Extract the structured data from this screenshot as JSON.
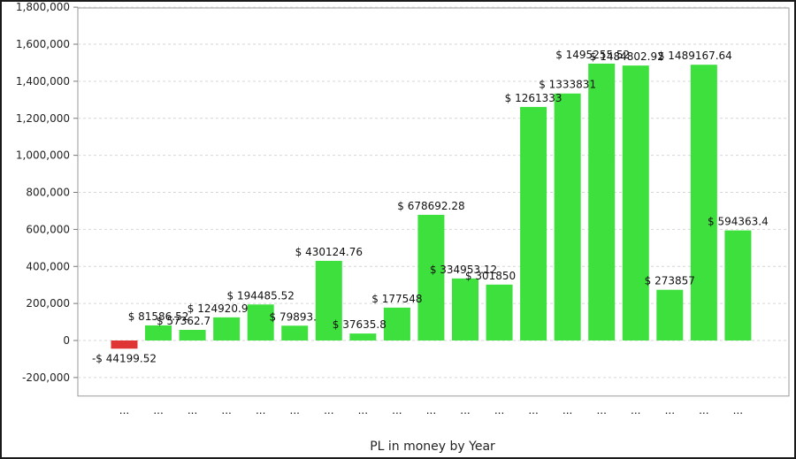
{
  "chart_data": {
    "type": "bar",
    "title": "",
    "xlabel": "PL in money by Year",
    "ylabel": "",
    "ylim": [
      -300000,
      1800000
    ],
    "yticks": [
      -200000,
      0,
      200000,
      400000,
      600000,
      800000,
      1000000,
      1200000,
      1400000,
      1600000,
      1800000
    ],
    "ytick_labels": [
      "-200,000",
      "0",
      "200,000",
      "400,000",
      "600,000",
      "800,000",
      "1,000,000",
      "1,200,000",
      "1,400,000",
      "1,600,000",
      "1,800,000"
    ],
    "grid": true,
    "legend": "none",
    "positive_color": "#3de03d",
    "negative_color": "#e03535",
    "categories": [
      "...",
      "...",
      "...",
      "...",
      "...",
      "...",
      "...",
      "...",
      "...",
      "...",
      "...",
      "...",
      "...",
      "...",
      "...",
      "...",
      "...",
      "...",
      "..."
    ],
    "values": [
      -44199.52,
      81586.52,
      57362.7,
      124920.9,
      194485.52,
      79893.0,
      430124.76,
      37635.8,
      177548,
      678692.28,
      334953.12,
      301850,
      1261333,
      1333831,
      1495255.52,
      1484802.92,
      273857,
      1489167.64,
      594363.4
    ],
    "data_labels": [
      "-$ 44199.52",
      "$ 81586.52",
      "$ 57362.7",
      "$ 124920.9",
      "$ 194485.52",
      "$ 79893.",
      "$ 430124.76",
      "$ 37635.8",
      "$ 177548",
      "$ 678692.28",
      "$ 334953.12",
      "$ 301850",
      "$ 1261333",
      "$ 1333831",
      "$ 1495255.52",
      "$ 1484802.92",
      "$ 273857",
      "$ 1489167.64",
      "$ 594363.4"
    ]
  }
}
